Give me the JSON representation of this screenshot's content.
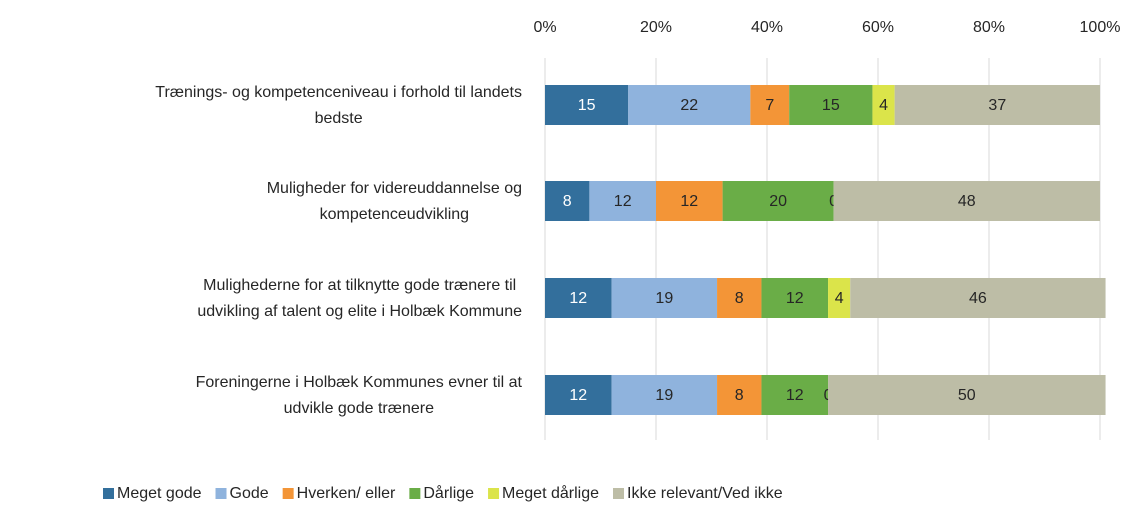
{
  "chart_data": {
    "type": "stacked_barh",
    "categories": [
      [
        "Trænings- og kompetenceniveau i forhold til landets",
        "bedste"
      ],
      [
        "Muligheder for videreuddannelse og",
        "kompetenceudvikling"
      ],
      [
        "Mulighederne for at tilknytte gode trænere til",
        "udvikling af talent og elite i Holbæk Kommune"
      ],
      [
        "Foreningerne i Holbæk Kommunes evner til at",
        "udvikle gode trænere"
      ]
    ],
    "series": [
      {
        "name": "Meget gode",
        "color": "#336f9c",
        "values": [
          15,
          8,
          12,
          12
        ]
      },
      {
        "name": "Gode",
        "color": "#8fb3dd",
        "values": [
          22,
          12,
          19,
          19
        ]
      },
      {
        "name": "Hverken/ eller",
        "color": "#f39537",
        "values": [
          7,
          12,
          8,
          8
        ]
      },
      {
        "name": "Dårlige",
        "color": "#6aad47",
        "values": [
          15,
          20,
          12,
          12
        ]
      },
      {
        "name": "Meget dårlige",
        "color": "#dbe44a",
        "values": [
          4,
          0,
          4,
          0
        ]
      },
      {
        "name": "Ikke relevant/Ved ikke",
        "color": "#bdbda6",
        "values": [
          37,
          48,
          46,
          50
        ]
      }
    ],
    "xlim": [
      0,
      100
    ],
    "xticks": [
      {
        "value": 0,
        "label": "0%"
      },
      {
        "value": 20,
        "label": "20%"
      },
      {
        "value": 40,
        "label": "40%"
      },
      {
        "value": 60,
        "label": "60%"
      },
      {
        "value": 80,
        "label": "80%"
      },
      {
        "value": 100,
        "label": "100%"
      }
    ],
    "grid": true,
    "legend": "bottom"
  }
}
